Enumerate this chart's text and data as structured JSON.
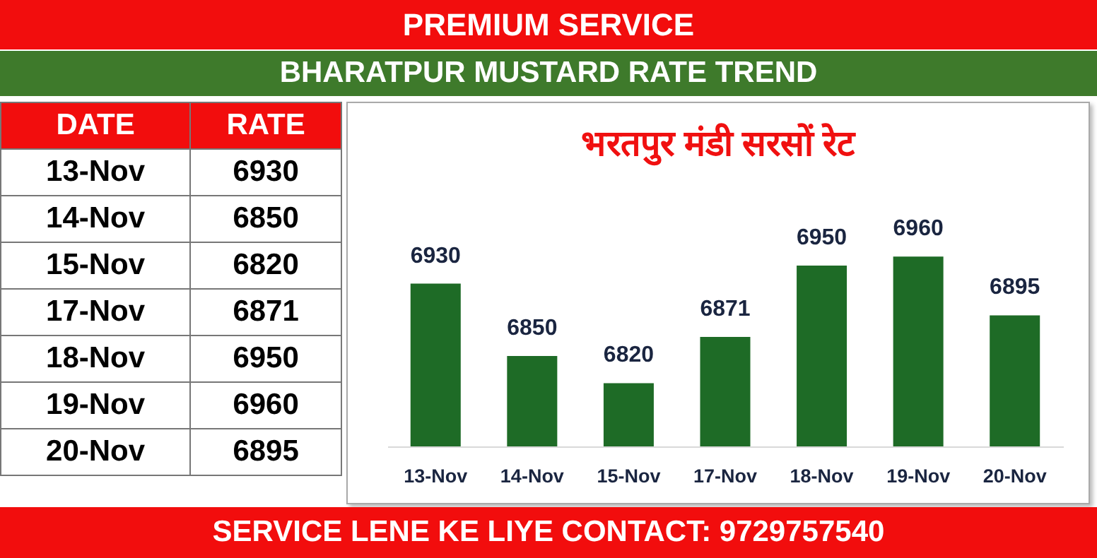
{
  "chart_data": {
    "type": "bar",
    "title": "BHARATPUR MUSTARD RATE TREND",
    "subtitle": "भरतपुर मंडी सरसों रेट",
    "categories": [
      "13-Nov",
      "14-Nov",
      "15-Nov",
      "17-Nov",
      "18-Nov",
      "19-Nov",
      "20-Nov"
    ],
    "values": [
      6930,
      6850,
      6820,
      6871,
      6950,
      6960,
      6895
    ],
    "value_labels": [
      "6930",
      "6850",
      "6820",
      "6871",
      "6950",
      "6960",
      "6895"
    ],
    "color": "#1e6b26",
    "ylim": [
      6750,
      7000
    ],
    "tick_labels": "x",
    "annotations": [
      "PREMIUM SERVICE",
      "SERVICE LENE KE LIYE CONTACT: 9729757540",
      "DATE",
      "RATE"
    ]
  }
}
